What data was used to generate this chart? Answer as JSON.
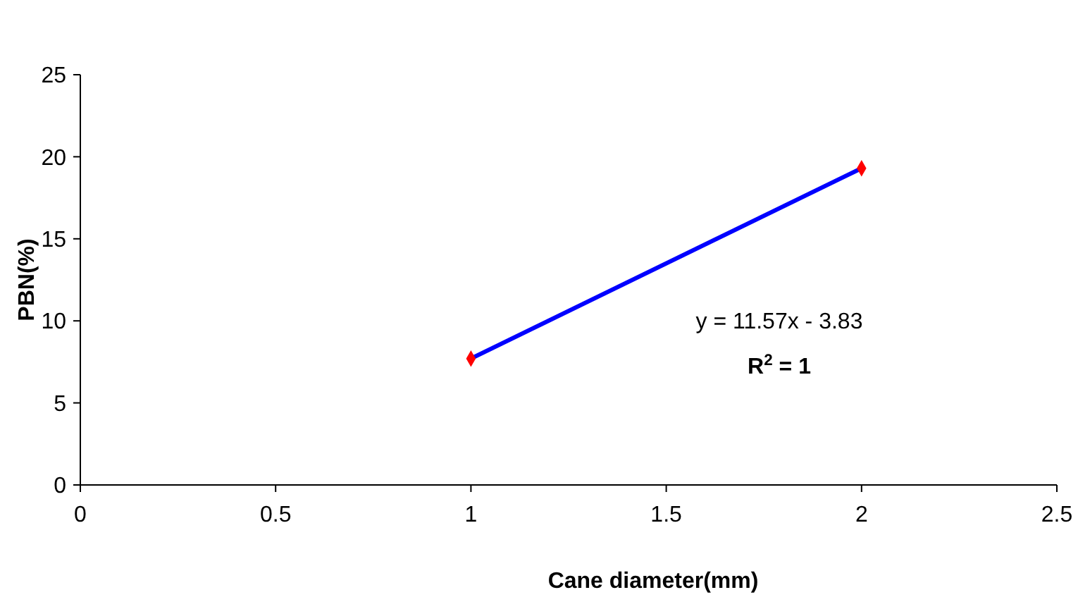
{
  "chart_data": {
    "type": "scatter",
    "xlabel": "Cane diameter(mm)",
    "ylabel": "PBN(%)",
    "xlim": [
      0,
      2.5
    ],
    "xticks": [
      0,
      0.5,
      1,
      1.5,
      2,
      2.5
    ],
    "ylim": [
      0,
      25
    ],
    "yticks": [
      0,
      5,
      10,
      15,
      20,
      25
    ],
    "grid": false,
    "x": [
      1,
      2
    ],
    "series": [
      {
        "type": "line",
        "color": "#0000ff",
        "values": [
          7.7,
          19.3
        ],
        "marker": "none"
      },
      {
        "color": "#ff0000",
        "values": [
          7.7,
          19.3
        ],
        "marker": "diamond"
      }
    ],
    "annotations": [
      "y = 11.57x - 3.83",
      "R$^{2}$ = 1"
    ]
  }
}
